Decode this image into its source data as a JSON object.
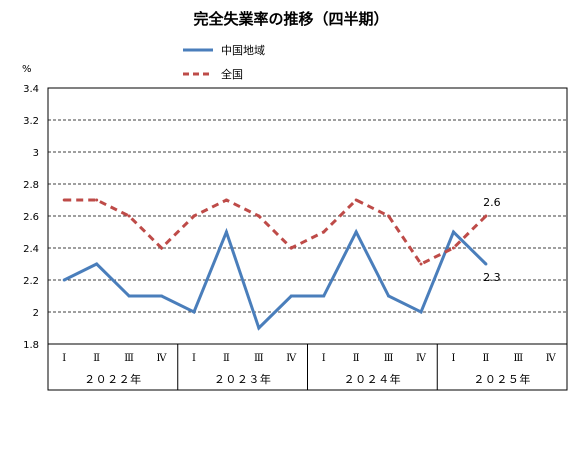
{
  "chart_data": {
    "type": "line",
    "title": "完全失業率の推移（四半期）",
    "ylabel": "%",
    "ylim": [
      1.8,
      3.4
    ],
    "yticks": [
      "1.8",
      "2",
      "2.2",
      "2.4",
      "2.6",
      "2.8",
      "3",
      "3.2",
      "3.4"
    ],
    "grid": true,
    "legend_position": "top",
    "categories": [
      "Ⅰ",
      "Ⅱ",
      "Ⅲ",
      "Ⅳ",
      "Ⅰ",
      "Ⅱ",
      "Ⅲ",
      "Ⅳ",
      "Ⅰ",
      "Ⅱ",
      "Ⅲ",
      "Ⅳ",
      "Ⅰ",
      "Ⅱ",
      "Ⅲ",
      "Ⅳ"
    ],
    "years": [
      "２０２２年",
      "２０２３年",
      "２０２４年",
      "２０２５年"
    ],
    "series": [
      {
        "name": "中国地域",
        "color": "#4a7ebb",
        "style": "solid",
        "values": [
          2.2,
          2.3,
          2.1,
          2.1,
          2.0,
          2.5,
          1.9,
          2.1,
          2.1,
          2.5,
          2.1,
          2.0,
          2.5,
          2.3,
          null,
          null
        ],
        "end_label": "2.3"
      },
      {
        "name": "全国",
        "color": "#be4b48",
        "style": "dashed",
        "values": [
          2.7,
          2.7,
          2.6,
          2.4,
          2.6,
          2.7,
          2.6,
          2.4,
          2.5,
          2.7,
          2.6,
          2.3,
          2.4,
          2.6,
          null,
          null
        ],
        "end_label": "2.6"
      }
    ]
  }
}
